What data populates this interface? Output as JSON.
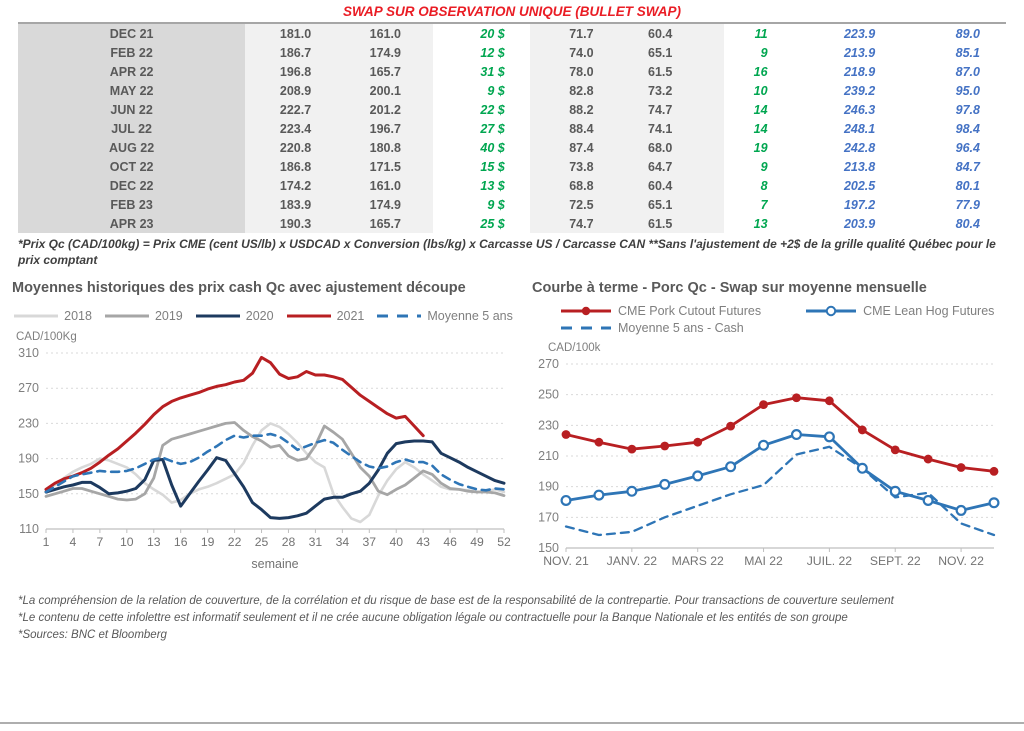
{
  "page": {
    "title": "SWAP SUR OBSERVATION UNIQUE (BULLET SWAP)"
  },
  "colors": {
    "title_red": "#ea1d25",
    "table_text": "#595959",
    "table_green": "#00a650",
    "table_blue": "#4472c4",
    "month_col_bg": "#d9d9d9",
    "value_col_bg": "#f1f1f1",
    "grid": "#d9d9d9",
    "axis": "#bfbfbf",
    "chart_text": "#7f7f7f"
  },
  "table": {
    "rows": [
      [
        "DEC 21",
        "181.0",
        "161.0",
        "20 $",
        "71.7",
        "60.4",
        "11",
        "223.9",
        "89.0"
      ],
      [
        "FEB 22",
        "186.7",
        "174.9",
        "12 $",
        "74.0",
        "65.1",
        "9",
        "213.9",
        "85.1"
      ],
      [
        "APR 22",
        "196.8",
        "165.7",
        "31 $",
        "78.0",
        "61.5",
        "16",
        "218.9",
        "87.0"
      ],
      [
        "MAY 22",
        "208.9",
        "200.1",
        "9 $",
        "82.8",
        "73.2",
        "10",
        "239.2",
        "95.0"
      ],
      [
        "JUN 22",
        "222.7",
        "201.2",
        "22 $",
        "88.2",
        "74.7",
        "14",
        "246.3",
        "97.8"
      ],
      [
        "JUL 22",
        "223.4",
        "196.7",
        "27 $",
        "88.4",
        "74.1",
        "14",
        "248.1",
        "98.4"
      ],
      [
        "AUG 22",
        "220.8",
        "180.8",
        "40 $",
        "87.4",
        "68.0",
        "19",
        "242.8",
        "96.4"
      ],
      [
        "OCT 22",
        "186.8",
        "171.5",
        "15 $",
        "73.8",
        "64.7",
        "9",
        "213.8",
        "84.7"
      ],
      [
        "DEC 22",
        "174.2",
        "161.0",
        "13 $",
        "68.8",
        "60.4",
        "8",
        "202.5",
        "80.1"
      ],
      [
        "FEB 23",
        "183.9",
        "174.9",
        "9 $",
        "72.5",
        "65.1",
        "7",
        "197.2",
        "77.9"
      ],
      [
        "APR 23",
        "190.3",
        "165.7",
        "25 $",
        "74.7",
        "61.5",
        "13",
        "203.9",
        "80.4"
      ]
    ]
  },
  "footnote_top": "*Prix Qc (CAD/100kg) = Prix CME (cent US/lb) x USDCAD x Conversion (lbs/kg) x Carcasse US / Carcasse CAN **Sans l'ajustement de +2$ de la grille qualité Québec pour le prix comptant",
  "footnotes_bottom": [
    "*La compréhension de la relation de couverture, de la corrélation et du risque de base est de la responsabilité de la contrepartie. Pour transactions de couverture seulement",
    "*Le contenu de cette infolettre est informatif seulement et il ne crée aucune obligation légale ou contractuelle pour la Banque Nationale et les entités de son groupe",
    "*Sources: BNC et Bloomberg"
  ],
  "chart_data": [
    {
      "type": "line",
      "title": "Moyennes historiques des prix cash Qc avec ajustement découpe",
      "ylabel": "CAD/100Kg",
      "xlabel": "semaine",
      "ylim": [
        110,
        310
      ],
      "yticks": [
        110,
        150,
        190,
        230,
        270,
        310
      ],
      "grid": true,
      "legend_position": "top",
      "n_points": 52,
      "xticks": [
        1,
        4,
        7,
        10,
        13,
        16,
        19,
        22,
        25,
        28,
        31,
        34,
        37,
        40,
        43,
        46,
        49,
        52
      ],
      "series": [
        {
          "name": "2018",
          "color": "#d8d8d8",
          "width": 2.6,
          "values": [
            155,
            160,
            168,
            175,
            180,
            184,
            190,
            188,
            184,
            180,
            172,
            162,
            155,
            149,
            140,
            143,
            150,
            155,
            158,
            162,
            167,
            172,
            185,
            205,
            222,
            230,
            226,
            218,
            208,
            196,
            186,
            180,
            150,
            135,
            122,
            118,
            126,
            148,
            165,
            178,
            186,
            180,
            172,
            165,
            158,
            155,
            155,
            154,
            152,
            153,
            155,
            152
          ]
        },
        {
          "name": "2019",
          "color": "#a6a6a6",
          "width": 2.8,
          "values": [
            147,
            150,
            153,
            156,
            156,
            153,
            150,
            147,
            144,
            143,
            144,
            150,
            168,
            205,
            212,
            215,
            218,
            221,
            224,
            227,
            230,
            231,
            222,
            215,
            210,
            203,
            205,
            193,
            188,
            190,
            205,
            227,
            220,
            212,
            196,
            180,
            170,
            153,
            149,
            155,
            160,
            168,
            176,
            172,
            162,
            156,
            155,
            153,
            152,
            152,
            151,
            148
          ]
        },
        {
          "name": "2020",
          "color": "#1d3a5f",
          "width": 3,
          "values": [
            152,
            155,
            158,
            160,
            163,
            163,
            157,
            150,
            151,
            153,
            156,
            166,
            188,
            189,
            160,
            136,
            150,
            164,
            177,
            191,
            188,
            173,
            158,
            140,
            132,
            123,
            122,
            123,
            125,
            128,
            136,
            144,
            146,
            146,
            150,
            153,
            162,
            177,
            196,
            207,
            209,
            210,
            210,
            209,
            196,
            191,
            186,
            180,
            175,
            170,
            165,
            162
          ]
        },
        {
          "name": "2021",
          "color": "#b81f22",
          "width": 3,
          "values": [
            155,
            162,
            167,
            170,
            174,
            179,
            186,
            194,
            201,
            210,
            219,
            229,
            240,
            249,
            255,
            259,
            262,
            265,
            269,
            272,
            274,
            277,
            279,
            287,
            305,
            299,
            286,
            281,
            283,
            289,
            285,
            285,
            283,
            280,
            271,
            262,
            255,
            248,
            241,
            236,
            238,
            227,
            216,
            null,
            null,
            null,
            null,
            null,
            null,
            null,
            null,
            null
          ]
        },
        {
          "name": "Moyenne 5 ans",
          "color": "#2e75b6",
          "width": 2.6,
          "dash": true,
          "values": [
            152,
            158,
            164,
            170,
            172,
            174,
            176,
            175,
            175,
            176,
            179,
            184,
            189,
            191,
            187,
            184,
            186,
            191,
            198,
            204,
            211,
            216,
            214,
            216,
            216,
            218,
            215,
            208,
            200,
            204,
            208,
            211,
            208,
            200,
            193,
            186,
            181,
            179,
            181,
            186,
            189,
            186,
            186,
            182,
            172,
            166,
            161,
            158,
            155,
            154,
            156,
            155
          ]
        }
      ]
    },
    {
      "type": "line",
      "title": "Courbe à terme - Porc Qc - Swap sur moyenne mensuelle",
      "ylabel": "CAD/100k",
      "xlabel": "",
      "ylim": [
        150,
        270
      ],
      "yticks": [
        150,
        170,
        190,
        210,
        230,
        250,
        270
      ],
      "grid": true,
      "legend_position": "top",
      "legend_rows": [
        [
          0,
          1
        ],
        [
          2
        ]
      ],
      "n_points": 14,
      "xticks": [
        {
          "i": 0,
          "label": "NOV. 21"
        },
        {
          "i": 2,
          "label": "JANV. 22"
        },
        {
          "i": 4,
          "label": "MARS 22"
        },
        {
          "i": 6,
          "label": "MAI 22"
        },
        {
          "i": 8,
          "label": "JUIL. 22"
        },
        {
          "i": 10,
          "label": "SEPT. 22"
        },
        {
          "i": 12,
          "label": "NOV. 22"
        }
      ],
      "series": [
        {
          "name": "CME Pork Cutout Futures",
          "color": "#b81f22",
          "width": 2.8,
          "marker": "filled",
          "values": [
            224,
            219,
            214.5,
            216.5,
            219,
            229.5,
            243.5,
            248,
            246,
            227,
            214,
            208,
            202.5,
            200
          ]
        },
        {
          "name": "CME Lean Hog Futures",
          "color": "#2e75b6",
          "width": 2.8,
          "marker": "open",
          "values": [
            181,
            184.5,
            187,
            191.5,
            197,
            203,
            217,
            224,
            222.5,
            202,
            187,
            181,
            174.5,
            179.5
          ]
        },
        {
          "name": "Moyenne 5 ans - Cash",
          "color": "#2e75b6",
          "width": 2.3,
          "dash": true,
          "z": -1,
          "values": [
            164,
            158.5,
            160.5,
            170,
            177.5,
            185,
            191,
            211,
            216,
            202,
            183,
            186,
            166,
            158.5
          ]
        }
      ]
    }
  ]
}
